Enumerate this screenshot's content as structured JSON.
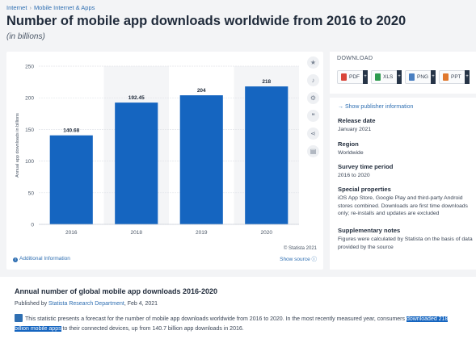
{
  "breadcrumb": [
    "Internet",
    "Mobile Internet & Apps"
  ],
  "title": "Number of mobile app downloads worldwide from 2016 to 2020",
  "subtitle": "(in billions)",
  "chart_data": {
    "type": "bar",
    "categories": [
      "2016",
      "2018",
      "2019",
      "2020"
    ],
    "values": [
      140.68,
      192.45,
      204,
      218
    ],
    "value_labels": [
      "140.68",
      "192.45",
      "204",
      "218"
    ],
    "ylabel": "Annual app downloads in billions",
    "ylim": [
      0,
      250
    ],
    "yticks": [
      "0",
      "50",
      "100",
      "150",
      "200",
      "250"
    ],
    "bar_color": "#1565c0",
    "grid": true
  },
  "chart_footer": {
    "additional_info": "Additional Information",
    "copyright": "© Statista 2021",
    "show_source": "Show source"
  },
  "download": {
    "title": "DOWNLOAD",
    "buttons": [
      {
        "label": "PDF",
        "color": "#d9453a"
      },
      {
        "label": "XLS",
        "color": "#2e9b4f"
      },
      {
        "label": "PNG",
        "color": "#4a7fc1"
      },
      {
        "label": "PPT",
        "color": "#e0782e"
      }
    ]
  },
  "publisher_link": "Show publisher information",
  "meta": [
    {
      "key": "Release date",
      "value": "January 2021"
    },
    {
      "key": "Region",
      "value": "Worldwide"
    },
    {
      "key": "Survey time period",
      "value": "2016 to 2020"
    },
    {
      "key": "Special properties",
      "value": "iOS App Store, Google Play and third-party Android stores combined. Downloads are first time downloads only; re-installs and updates are excluded"
    },
    {
      "key": "Supplementary notes",
      "value": "Figures were calculated by Statista on the basis of data provided by the source"
    }
  ],
  "description": {
    "title": "Annual number of global mobile app downloads 2016-2020",
    "published_prefix": "Published by",
    "publisher": "Statista Research Department",
    "published_date": ", Feb 4, 2021",
    "text_before": "This statistic presents a forecast for the number of mobile app downloads worldwide from 2016 to 2020. In the most recently measured year, consumers",
    "highlight": "downloaded 218 billion mobile apps",
    "text_after": "to their connected devices, up from 140.7 billion app downloads in 2016."
  }
}
